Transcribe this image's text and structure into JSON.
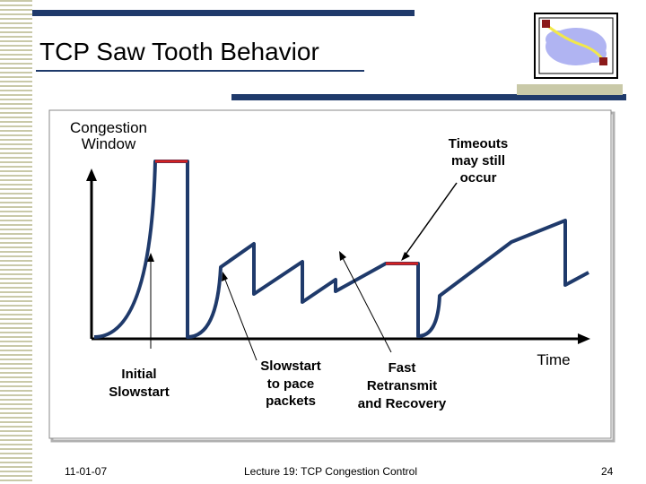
{
  "slide": {
    "title": "TCP Saw Tooth Behavior"
  },
  "diagram": {
    "y_axis_label_line1": "Congestion",
    "y_axis_label_line2": "Window",
    "x_axis_label": "Time",
    "annotations": {
      "timeouts": [
        "Timeouts",
        "may still",
        "occur"
      ],
      "initial_slowstart": [
        "Initial",
        "Slowstart"
      ],
      "slowstart_pace": [
        "Slowstart",
        "to pace",
        "packets"
      ],
      "fast_retransmit": [
        "Fast",
        "Retransmit",
        "and Recovery"
      ]
    },
    "colors": {
      "curve": "#1f3a6b",
      "timeout_marker": "#d62020",
      "frame": "#888888"
    }
  },
  "footer": {
    "date": "11-01-07",
    "lecture": "Lecture 19: TCP Congestion Control",
    "page": "24"
  },
  "decorations": {
    "logo": "network-cloud-logo"
  }
}
